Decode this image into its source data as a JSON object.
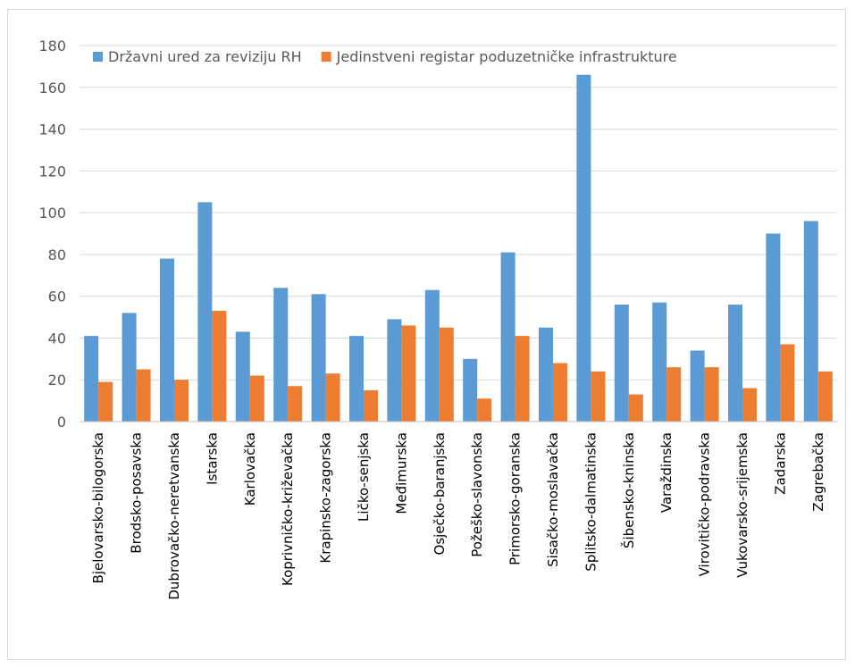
{
  "chart_data": {
    "type": "bar",
    "categories": [
      "Bjelovarsko-bilogorska",
      "Brodsko-posavska",
      "Dubrovačko-neretvanska",
      "Istarska",
      "Karlovačka",
      "Koprivničko-križevačka",
      "Krapinsko-zagorska",
      "Ličko-senjska",
      "Međimurska",
      "Osječko-baranjska",
      "Požeško-slavonska",
      "Primorsko-goranska",
      "Sisačko-moslavačka",
      "Splitsko-dalmatinska",
      "Šibensko-kninska",
      "Varaždinska",
      "Virovitičko-podravska",
      "Vukovarsko-srijemska",
      "Zadarska",
      "Zagrebačka"
    ],
    "series": [
      {
        "name": "Državni ured za reviziju RH",
        "color": "#5b9bd5",
        "values": [
          41,
          52,
          78,
          105,
          43,
          64,
          61,
          41,
          49,
          63,
          30,
          81,
          45,
          166,
          56,
          57,
          34,
          56,
          90,
          96
        ]
      },
      {
        "name": "Jedinstveni registar poduzetničke infrastrukture",
        "color": "#ed7d31",
        "values": [
          19,
          25,
          20,
          53,
          22,
          17,
          23,
          15,
          46,
          45,
          11,
          41,
          28,
          24,
          13,
          26,
          26,
          16,
          37,
          24
        ]
      }
    ],
    "ylim": [
      0,
      180
    ],
    "yticks": [
      0,
      20,
      40,
      60,
      80,
      100,
      120,
      140,
      160,
      180
    ],
    "grid": true,
    "legend_position": "top",
    "title": "",
    "xlabel": "",
    "ylabel": ""
  }
}
